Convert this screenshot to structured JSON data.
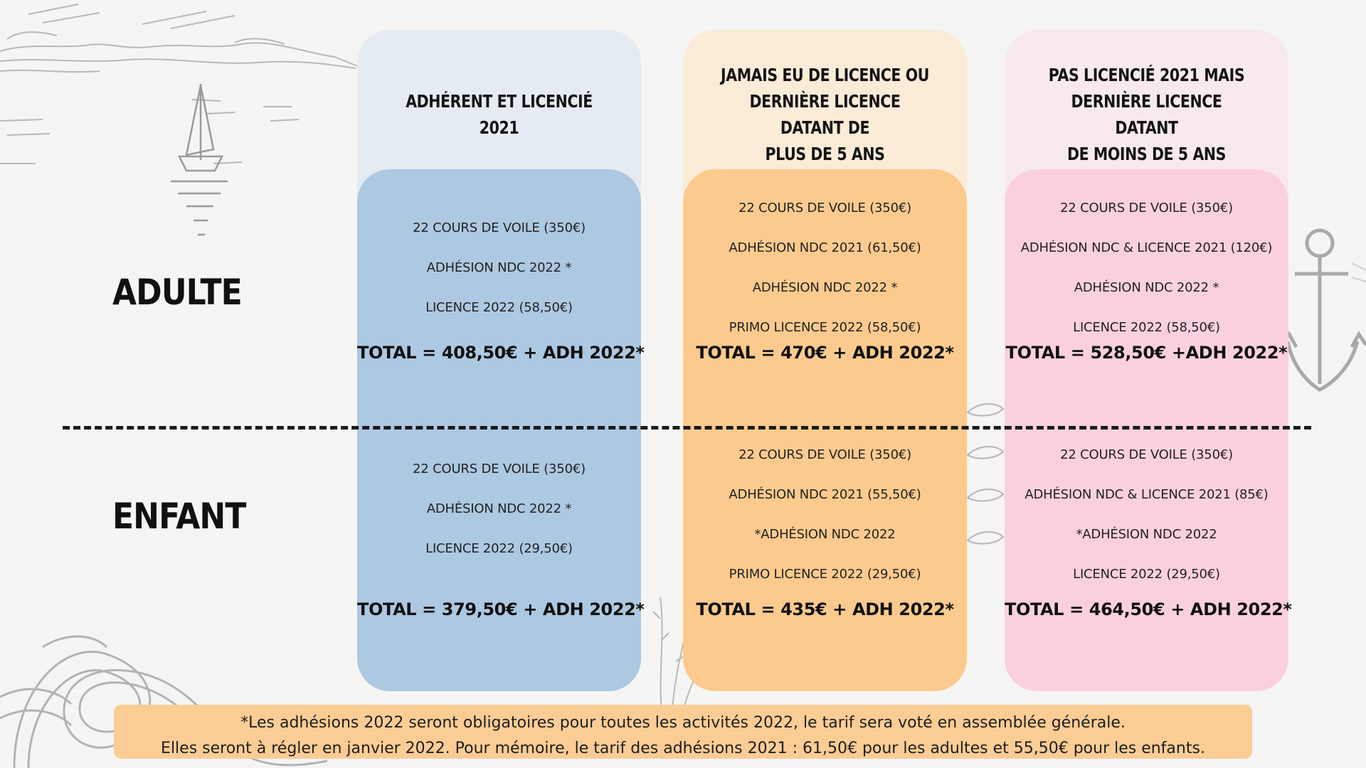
{
  "rows": {
    "adult": "ADULTE",
    "child": "ENFANT"
  },
  "columns": [
    {
      "header": "ADHÉRENT ET LICENCIÉ 2021",
      "adult": {
        "lines": [
          "22 COURS DE VOILE (350€)",
          "ADHÉSION NDC 2022 *",
          "LICENCE 2022 (58,50€)"
        ],
        "total": "TOTAL = 408,50€ + ADH 2022*"
      },
      "child": {
        "lines": [
          "22 COURS DE VOILE (350€)",
          "ADHÉSION NDC 2022 *",
          "LICENCE 2022 (29,50€)"
        ],
        "total": "TOTAL = 379,50€ + ADH 2022*"
      }
    },
    {
      "header": "JAMAIS EU DE LICENCE OU\nDERNIÈRE LICENCE DATANT DE\nPLUS DE 5 ANS",
      "adult": {
        "lines": [
          "22 COURS DE VOILE (350€)",
          "ADHÉSION NDC 2021 (61,50€)",
          "ADHÉSION NDC 2022 *",
          "PRIMO LICENCE 2022 (58,50€)"
        ],
        "total": "TOTAL = 470€ + ADH 2022*"
      },
      "child": {
        "lines": [
          "22 COURS DE VOILE (350€)",
          "ADHÉSION NDC 2021 (55,50€)",
          "*ADHÉSION NDC 2022",
          "PRIMO LICENCE 2022 (29,50€)"
        ],
        "total": "TOTAL = 435€ + ADH 2022*"
      }
    },
    {
      "header": "PAS LICENCIÉ 2021 MAIS\nDERNIÈRE LICENCE DATANT\nDE MOINS DE 5 ANS",
      "adult": {
        "lines": [
          "22 COURS DE VOILE (350€)",
          "ADHÉSION NDC & LICENCE 2021 (120€)",
          "ADHÉSION NDC 2022 *",
          "LICENCE 2022 (58,50€)"
        ],
        "total": "TOTAL = 528,50€ +ADH 2022*"
      },
      "child": {
        "lines": [
          "22 COURS DE VOILE (350€)",
          "ADHÉSION NDC & LICENCE 2021 (85€)",
          "*ADHÉSION NDC 2022",
          "LICENCE 2022 (29,50€)"
        ],
        "total": "TOTAL = 464,50€ + ADH 2022*"
      }
    }
  ],
  "footnote": {
    "line1": "*Les adhésions 2022 seront obligatoires pour toutes les activités 2022, le tarif sera voté en assemblée générale.",
    "line2": "Elles seront à régler en janvier 2022. Pour mémoire, le tarif des adhésions 2021 : 61,50€ pour les adultes et 55,50€ pour les enfants."
  },
  "colors": {
    "background": "#f5f5f4",
    "blue_light": "#e5ebf2",
    "blue": "#adc8e1",
    "orange_light": "#fbecd7",
    "orange": "#fcca8e",
    "pink_light": "#f8e9ee",
    "pink": "#fbd0de",
    "footnote_bg": "#fbcc94"
  },
  "decorations": [
    "sailboat-sketch",
    "coastline-sketch",
    "anchor-sketch",
    "rope-knot-sketch",
    "fish-sketch",
    "seaweed-sketch"
  ]
}
